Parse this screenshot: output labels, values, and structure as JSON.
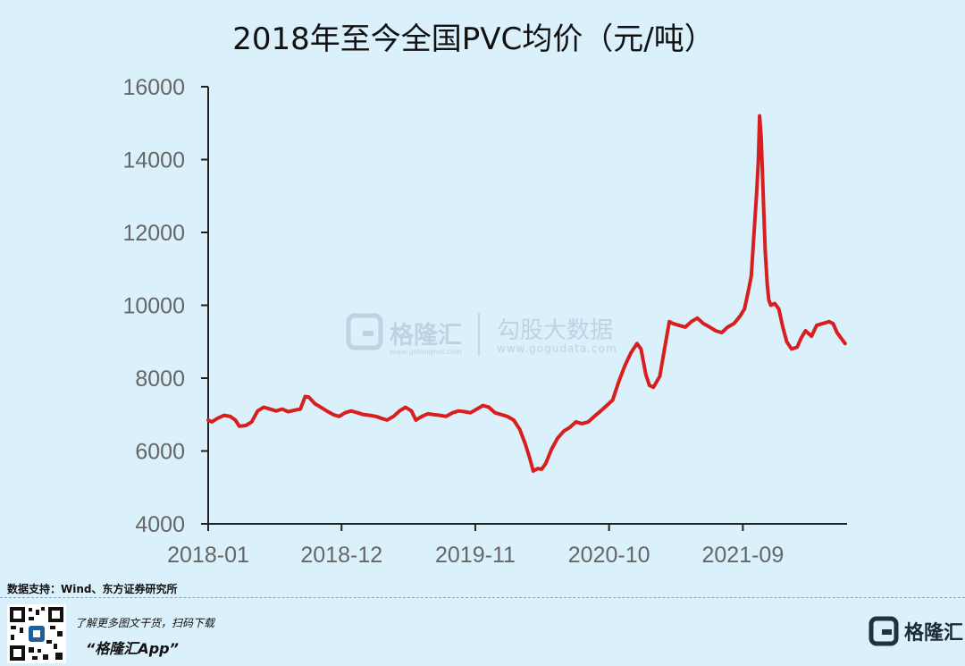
{
  "chart_data": {
    "type": "line",
    "title": "2018年至今全国PVC均价（元/吨）",
    "xlabel": "",
    "ylabel": "",
    "x_tick_labels": [
      "2018-01",
      "2018-12",
      "2019-11",
      "2020-10",
      "2021-09"
    ],
    "x_tick_values": [
      "2018-01-01",
      "2018-12-01",
      "2019-11-01",
      "2020-10-01",
      "2021-09-01"
    ],
    "xlim": [
      "2018-01-01",
      "2022-05-20"
    ],
    "ylim": [
      4000,
      16000
    ],
    "y_ticks": [
      4000,
      6000,
      8000,
      10000,
      12000,
      14000,
      16000
    ],
    "grid": false,
    "color": "#d81e1e",
    "series": [
      {
        "name": "",
        "points": [
          [
            "2018-01-01",
            6850
          ],
          [
            "2018-01-10",
            6800
          ],
          [
            "2018-01-25",
            6900
          ],
          [
            "2018-02-10",
            6980
          ],
          [
            "2018-02-25",
            6950
          ],
          [
            "2018-03-10",
            6850
          ],
          [
            "2018-03-20",
            6680
          ],
          [
            "2018-04-05",
            6700
          ],
          [
            "2018-04-20",
            6800
          ],
          [
            "2018-05-05",
            7100
          ],
          [
            "2018-05-20",
            7200
          ],
          [
            "2018-06-05",
            7150
          ],
          [
            "2018-06-20",
            7100
          ],
          [
            "2018-07-05",
            7150
          ],
          [
            "2018-07-20",
            7080
          ],
          [
            "2018-08-05",
            7120
          ],
          [
            "2018-08-20",
            7150
          ],
          [
            "2018-09-01",
            7500
          ],
          [
            "2018-09-10",
            7480
          ],
          [
            "2018-09-25",
            7300
          ],
          [
            "2018-10-10",
            7200
          ],
          [
            "2018-10-25",
            7100
          ],
          [
            "2018-11-10",
            7000
          ],
          [
            "2018-11-25",
            6950
          ],
          [
            "2018-12-10",
            7050
          ],
          [
            "2018-12-25",
            7100
          ],
          [
            "2019-01-10",
            7050
          ],
          [
            "2019-01-25",
            7000
          ],
          [
            "2019-02-10",
            6980
          ],
          [
            "2019-02-25",
            6950
          ],
          [
            "2019-03-10",
            6900
          ],
          [
            "2019-03-25",
            6850
          ],
          [
            "2019-04-10",
            6950
          ],
          [
            "2019-04-25",
            7100
          ],
          [
            "2019-05-10",
            7200
          ],
          [
            "2019-05-25",
            7100
          ],
          [
            "2019-06-05",
            6850
          ],
          [
            "2019-06-20",
            6950
          ],
          [
            "2019-07-05",
            7020
          ],
          [
            "2019-07-20",
            7000
          ],
          [
            "2019-08-05",
            6980
          ],
          [
            "2019-08-20",
            6950
          ],
          [
            "2019-09-05",
            7050
          ],
          [
            "2019-09-20",
            7100
          ],
          [
            "2019-10-05",
            7080
          ],
          [
            "2019-10-20",
            7050
          ],
          [
            "2019-11-05",
            7150
          ],
          [
            "2019-11-20",
            7250
          ],
          [
            "2019-12-05",
            7200
          ],
          [
            "2019-12-20",
            7050
          ],
          [
            "2020-01-05",
            7000
          ],
          [
            "2020-01-20",
            6950
          ],
          [
            "2020-02-05",
            6850
          ],
          [
            "2020-02-20",
            6600
          ],
          [
            "2020-03-05",
            6200
          ],
          [
            "2020-03-15",
            5850
          ],
          [
            "2020-03-25",
            5450
          ],
          [
            "2020-04-05",
            5520
          ],
          [
            "2020-04-15",
            5500
          ],
          [
            "2020-04-25",
            5650
          ],
          [
            "2020-05-10",
            6050
          ],
          [
            "2020-05-25",
            6350
          ],
          [
            "2020-06-10",
            6550
          ],
          [
            "2020-06-25",
            6650
          ],
          [
            "2020-07-10",
            6800
          ],
          [
            "2020-07-25",
            6750
          ],
          [
            "2020-08-10",
            6800
          ],
          [
            "2020-08-25",
            6950
          ],
          [
            "2020-09-10",
            7100
          ],
          [
            "2020-09-25",
            7250
          ],
          [
            "2020-10-10",
            7400
          ],
          [
            "2020-10-25",
            7900
          ],
          [
            "2020-11-10",
            8350
          ],
          [
            "2020-11-25",
            8700
          ],
          [
            "2020-12-10",
            8950
          ],
          [
            "2020-12-20",
            8800
          ],
          [
            "2021-01-01",
            8100
          ],
          [
            "2021-01-10",
            7800
          ],
          [
            "2021-01-20",
            7750
          ],
          [
            "2021-02-05",
            8050
          ],
          [
            "2021-02-20",
            9000
          ],
          [
            "2021-03-01",
            9550
          ],
          [
            "2021-03-10",
            9500
          ],
          [
            "2021-03-25",
            9450
          ],
          [
            "2021-04-10",
            9400
          ],
          [
            "2021-04-25",
            9550
          ],
          [
            "2021-05-10",
            9650
          ],
          [
            "2021-05-25",
            9500
          ],
          [
            "2021-06-10",
            9400
          ],
          [
            "2021-06-25",
            9300
          ],
          [
            "2021-07-10",
            9250
          ],
          [
            "2021-07-25",
            9400
          ],
          [
            "2021-08-10",
            9500
          ],
          [
            "2021-08-25",
            9700
          ],
          [
            "2021-09-05",
            9900
          ],
          [
            "2021-09-15",
            10400
          ],
          [
            "2021-09-22",
            10800
          ],
          [
            "2021-09-28",
            11800
          ],
          [
            "2021-10-05",
            13000
          ],
          [
            "2021-10-10",
            14000
          ],
          [
            "2021-10-13",
            15200
          ],
          [
            "2021-10-17",
            14600
          ],
          [
            "2021-10-22",
            13000
          ],
          [
            "2021-10-27",
            11500
          ],
          [
            "2021-11-01",
            10600
          ],
          [
            "2021-11-05",
            10150
          ],
          [
            "2021-11-10",
            10000
          ],
          [
            "2021-11-20",
            10050
          ],
          [
            "2021-11-30",
            9900
          ],
          [
            "2021-12-10",
            9400
          ],
          [
            "2021-12-20",
            9000
          ],
          [
            "2022-01-01",
            8800
          ],
          [
            "2022-01-15",
            8850
          ],
          [
            "2022-01-25",
            9100
          ],
          [
            "2022-02-05",
            9300
          ],
          [
            "2022-02-20",
            9150
          ],
          [
            "2022-03-05",
            9450
          ],
          [
            "2022-03-20",
            9500
          ],
          [
            "2022-04-05",
            9550
          ],
          [
            "2022-04-15",
            9500
          ],
          [
            "2022-04-25",
            9250
          ],
          [
            "2022-05-05",
            9100
          ],
          [
            "2022-05-15",
            8950
          ]
        ]
      }
    ]
  },
  "watermark": {
    "brand_name": "格隆汇",
    "brand_url": "www.gelonghui.com",
    "product_name": "勾股大数据",
    "product_url": "www.gogudata.com"
  },
  "footer": {
    "source": "数据支持：Wind、东方证券研究所",
    "promo_line": "了解更多图文干货，扫码下载",
    "promo_app": "“格隆汇App”",
    "brand_name": "格隆汇",
    "qr_icon": "qr-code-icon",
    "logo_icon": "gelonghui-logo-icon",
    "logo_color": "#1f3242"
  }
}
